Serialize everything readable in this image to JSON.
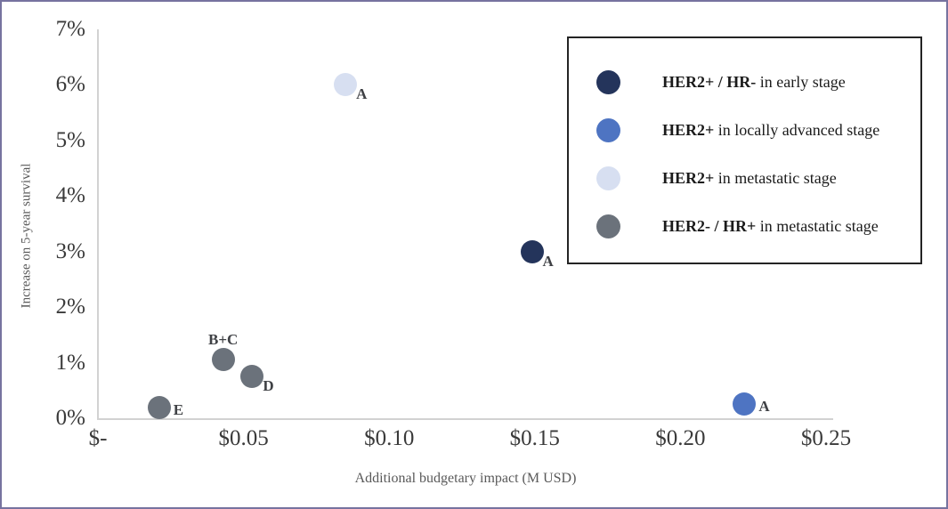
{
  "chart_data": {
    "type": "scatter",
    "title": "",
    "xlabel": "Additional budgetary impact (M USD)",
    "ylabel": "Increase on 5-year survival",
    "xlim": [
      0,
      0.25
    ],
    "ylim": [
      0,
      7
    ],
    "grid": false,
    "legend_position": "top-right",
    "x_ticks": [
      {
        "value": 0.0,
        "label": "$-"
      },
      {
        "value": 0.05,
        "label": "$0.05"
      },
      {
        "value": 0.1,
        "label": "$0.10"
      },
      {
        "value": 0.15,
        "label": "$0.15"
      },
      {
        "value": 0.2,
        "label": "$0.20"
      },
      {
        "value": 0.25,
        "label": "$0.25"
      }
    ],
    "y_ticks": [
      {
        "value": 0,
        "label": "0%"
      },
      {
        "value": 1,
        "label": "1%"
      },
      {
        "value": 2,
        "label": "2%"
      },
      {
        "value": 3,
        "label": "3%"
      },
      {
        "value": 4,
        "label": "4%"
      },
      {
        "value": 5,
        "label": "5%"
      },
      {
        "value": 6,
        "label": "6%"
      },
      {
        "value": 7,
        "label": "7%"
      }
    ],
    "series": [
      {
        "name": "HER2+ / HR- in early stage",
        "name_bold": "HER2+ / HR-",
        "name_rest": " in early stage",
        "color": "#24345b",
        "points": [
          {
            "x": 0.149,
            "y": 3.0,
            "label": "A",
            "label_pos": "below-right"
          }
        ]
      },
      {
        "name": "HER2+ in locally advanced stage",
        "name_bold": "HER2+",
        "name_rest": " in locally advanced stage",
        "color": "#4e74c2",
        "points": [
          {
            "x": 0.222,
            "y": 0.25,
            "label": "A",
            "label_pos": "right"
          }
        ]
      },
      {
        "name": "HER2+ in metastatic stage",
        "name_bold": "HER2+",
        "name_rest": " in metastatic stage",
        "color": "#d7dff1",
        "points": [
          {
            "x": 0.085,
            "y": 6.0,
            "label": "A",
            "label_pos": "below-right"
          }
        ]
      },
      {
        "name": "HER2- / HR+ in metastatic stage",
        "name_bold": "HER2- / HR+",
        "name_rest": " in metastatic stage",
        "color": "#6b727b",
        "points": [
          {
            "x": 0.043,
            "y": 1.05,
            "label": "B+C",
            "label_pos": "above"
          },
          {
            "x": 0.053,
            "y": 0.75,
            "label": "D",
            "label_pos": "below-right"
          },
          {
            "x": 0.021,
            "y": 0.2,
            "label": "E",
            "label_pos": "right"
          }
        ]
      }
    ]
  },
  "colors": {
    "frame_border": "#76739f",
    "axis_line": "#d2d2d2",
    "tick_text": "#3a3a3a",
    "axis_title_text": "#595959",
    "point_label_text": "#3f4145",
    "legend_border": "#242424",
    "legend_text": "#1b1b1b",
    "background": "#ffffff"
  }
}
